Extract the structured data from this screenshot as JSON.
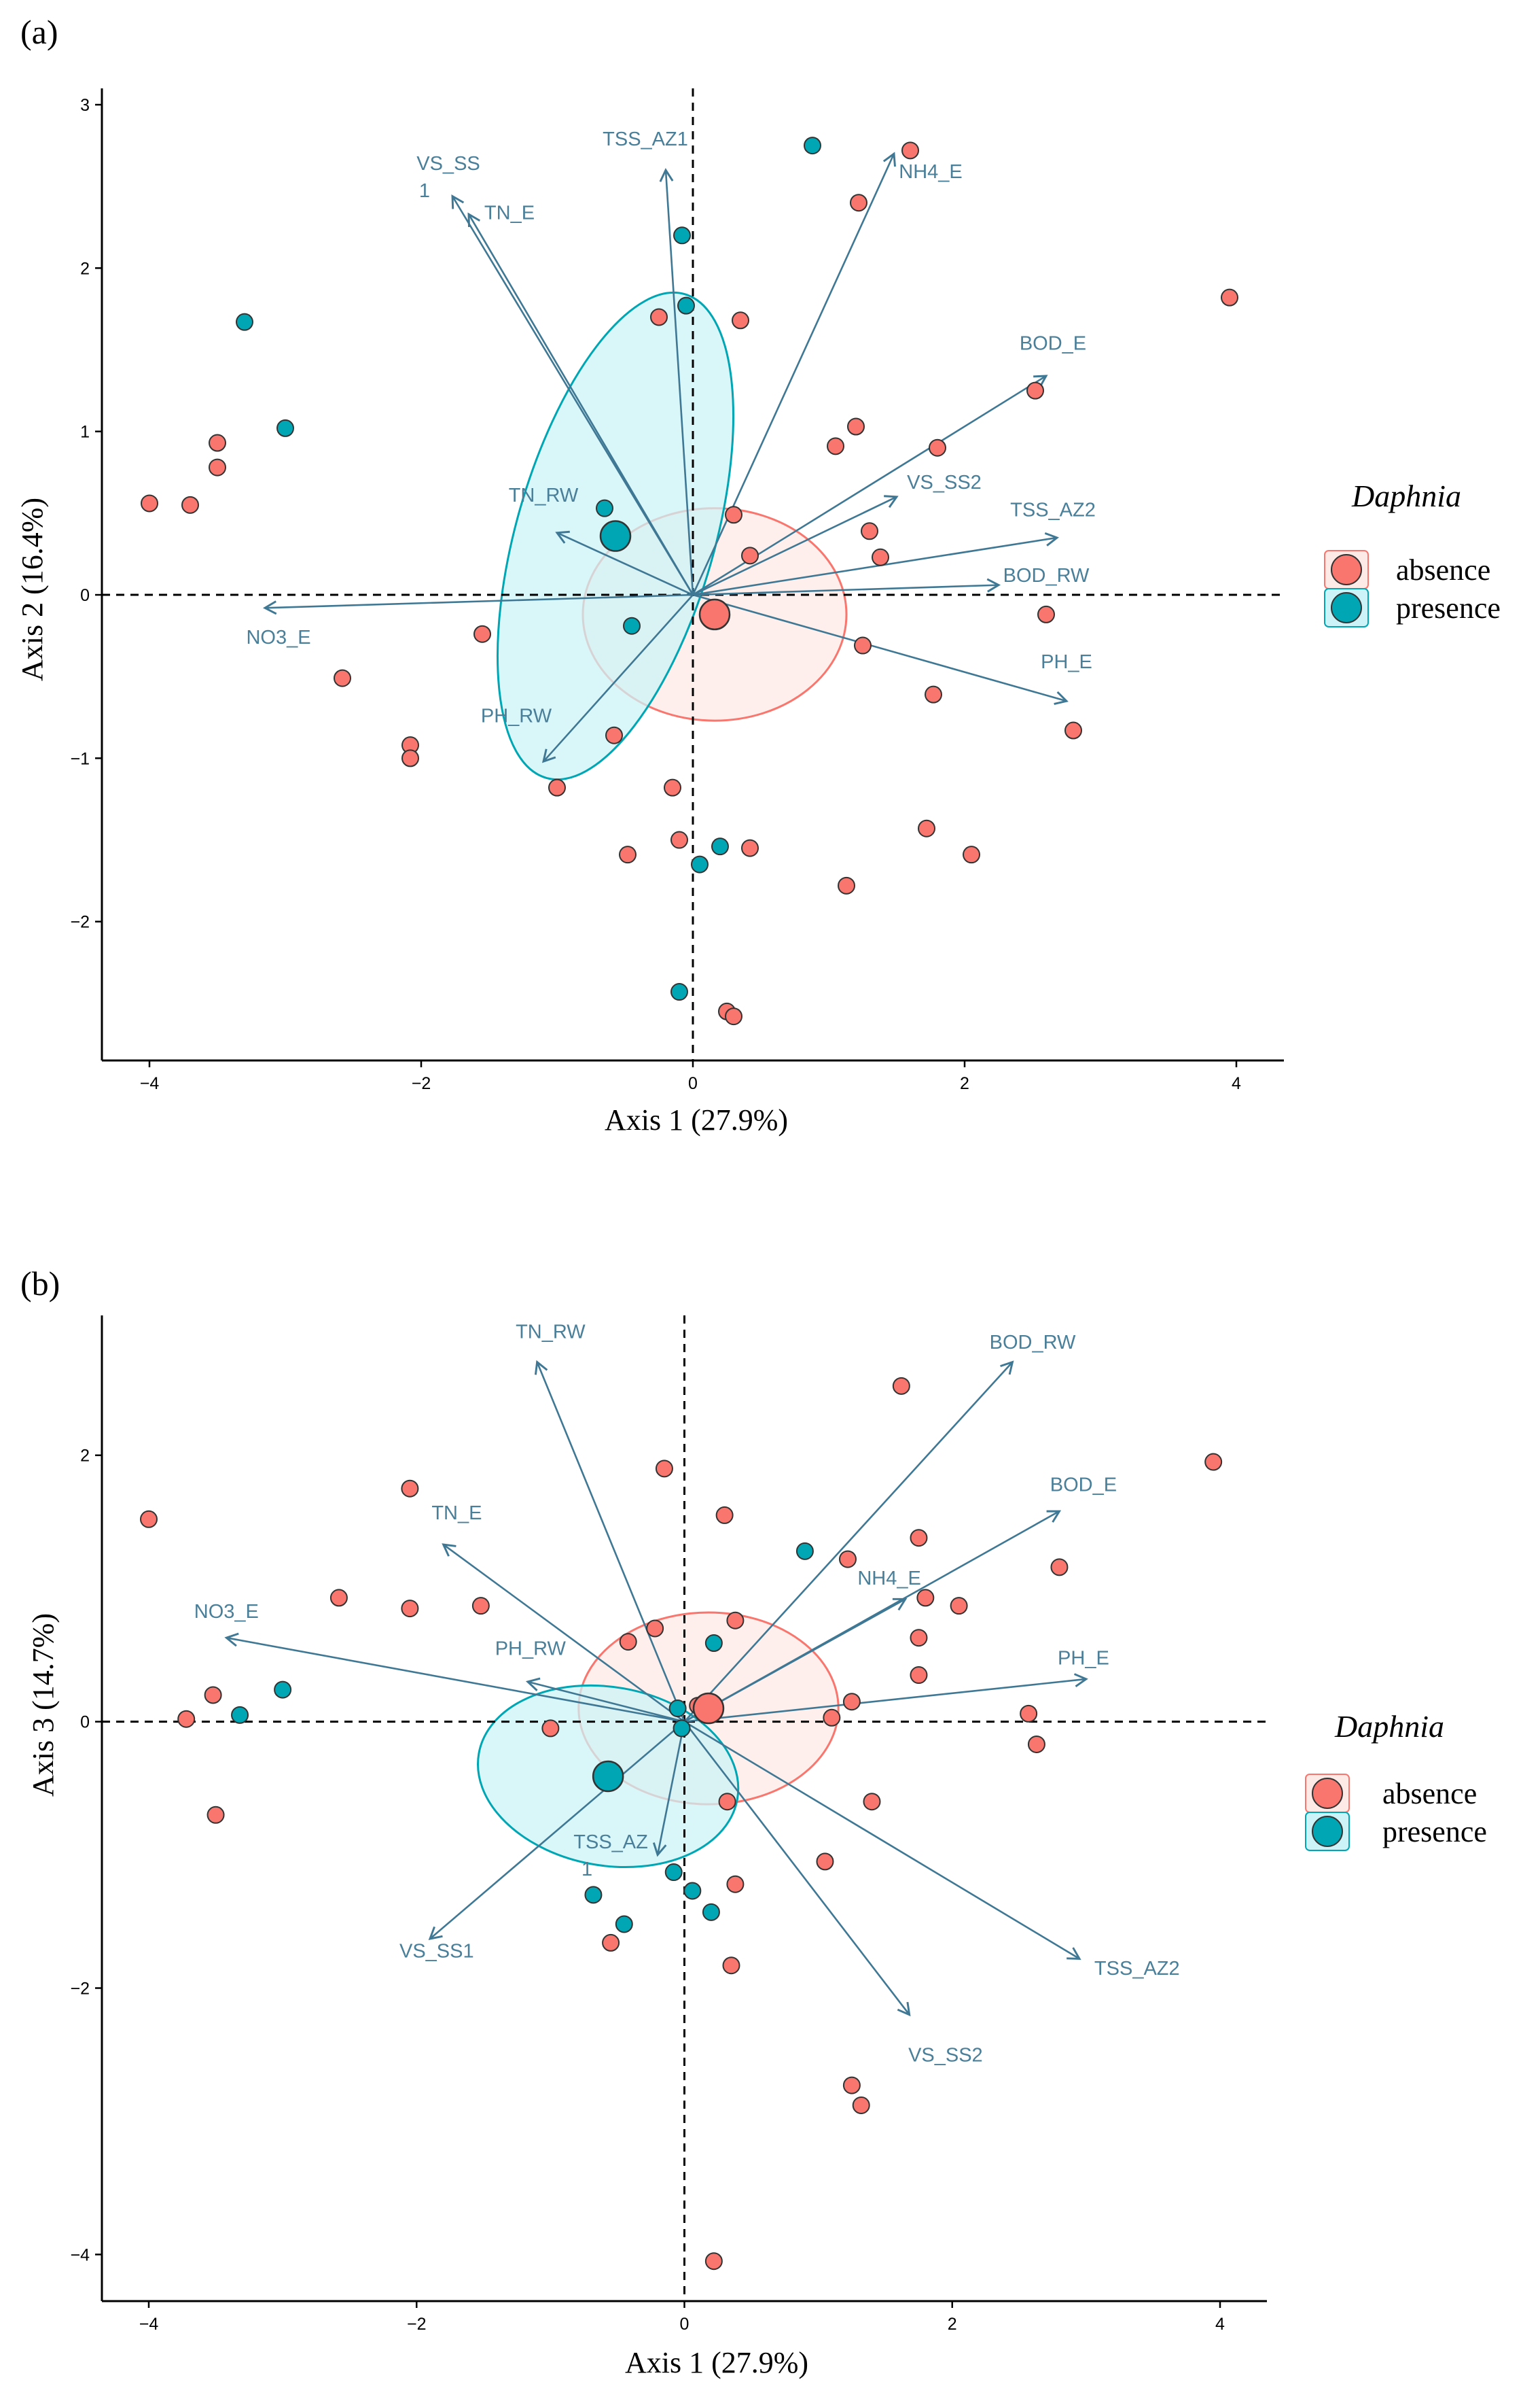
{
  "colors": {
    "absence": "#f8766d",
    "presence": "#00a6b3",
    "absence_fill_ellipse": "#fde9e6",
    "presence_fill_ellipse": "#ccf3f7",
    "vector": "#3f7894",
    "vector_label": "#4a7f9a"
  },
  "chart_data": [
    {
      "type": "scatter",
      "panel_label": "(a)",
      "xlabel": "Axis 1 (27.9%)",
      "ylabel": "Axis 2 (16.4%)",
      "xlim": [
        -4.35,
        4.35
      ],
      "ylim": [
        -2.85,
        3.1
      ],
      "xticks": [
        -4,
        -2,
        0,
        2,
        4
      ],
      "yticks": [
        -2,
        -1,
        0,
        1,
        2,
        3
      ],
      "tick_labels_x": [
        "−4",
        "−2",
        "0",
        "2",
        "4"
      ],
      "tick_labels_y": [
        "−2",
        "−1",
        "0",
        "1",
        "2",
        "3"
      ],
      "legend": {
        "title": "Daphnia",
        "entries": [
          "absence",
          "presence"
        ]
      },
      "series": [
        {
          "name": "absence",
          "points": [
            [
              1.6,
              2.72
            ],
            [
              1.22,
              2.4
            ],
            [
              3.95,
              1.82
            ],
            [
              -0.25,
              1.7
            ],
            [
              0.35,
              1.68
            ],
            [
              2.52,
              1.25
            ],
            [
              1.2,
              1.03
            ],
            [
              1.05,
              0.91
            ],
            [
              1.8,
              0.9
            ],
            [
              -4.0,
              0.56
            ],
            [
              -3.7,
              0.55
            ],
            [
              -3.5,
              0.93
            ],
            [
              -3.5,
              0.78
            ],
            [
              0.3,
              0.49
            ],
            [
              1.3,
              0.39
            ],
            [
              1.38,
              0.23
            ],
            [
              0.42,
              0.24
            ],
            [
              2.6,
              -0.12
            ],
            [
              1.25,
              -0.31
            ],
            [
              -1.55,
              -0.24
            ],
            [
              -2.58,
              -0.51
            ],
            [
              1.77,
              -0.61
            ],
            [
              2.8,
              -0.83
            ],
            [
              -0.58,
              -0.86
            ],
            [
              -2.08,
              -0.92
            ],
            [
              -2.08,
              -1.0
            ],
            [
              -1.0,
              -1.18
            ],
            [
              -0.15,
              -1.18
            ],
            [
              -0.48,
              -1.59
            ],
            [
              -0.1,
              -1.5
            ],
            [
              0.42,
              -1.55
            ],
            [
              1.72,
              -1.43
            ],
            [
              2.05,
              -1.59
            ],
            [
              1.13,
              -1.78
            ],
            [
              0.25,
              -2.55
            ],
            [
              0.3,
              -2.58
            ]
          ]
        },
        {
          "name": "presence",
          "points": [
            [
              0.88,
              2.75
            ],
            [
              -0.08,
              2.2
            ],
            [
              -0.05,
              1.77
            ],
            [
              -3.3,
              1.67
            ],
            [
              -3.0,
              1.02
            ],
            [
              -0.65,
              0.53
            ],
            [
              -0.45,
              -0.19
            ],
            [
              0.2,
              -1.54
            ],
            [
              0.05,
              -1.65
            ],
            [
              -0.1,
              -2.43
            ]
          ]
        }
      ],
      "centroids": [
        {
          "name": "absence",
          "x": 0.16,
          "y": -0.12
        },
        {
          "name": "presence",
          "x": -0.57,
          "y": 0.36
        }
      ],
      "ellipses": [
        {
          "name": "absence",
          "cx": 0.16,
          "cy": -0.12,
          "rx": 0.97,
          "ry": 0.65,
          "angle": 0
        },
        {
          "name": "presence",
          "cx": -0.57,
          "cy": 0.36,
          "rx": 0.73,
          "ry": 1.54,
          "angle": 16
        }
      ],
      "vectors": [
        {
          "label": "VS_SS\n1",
          "x": -1.77,
          "y": 2.44,
          "lx": -1.8,
          "ly": 2.6
        },
        {
          "label": "TN_E",
          "x": -1.65,
          "y": 2.33,
          "lx": -1.35,
          "ly": 2.3
        },
        {
          "label": "TSS_AZ1",
          "x": -0.2,
          "y": 2.6,
          "lx": -0.35,
          "ly": 2.75
        },
        {
          "label": "NH4_E",
          "x": 1.48,
          "y": 2.7,
          "lx": 1.75,
          "ly": 2.55
        },
        {
          "label": "BOD_E",
          "x": 2.6,
          "y": 1.34,
          "lx": 2.65,
          "ly": 1.5
        },
        {
          "label": "VS_SS2",
          "x": 1.5,
          "y": 0.6,
          "lx": 1.85,
          "ly": 0.65
        },
        {
          "label": "TSS_AZ2",
          "x": 2.68,
          "y": 0.35,
          "lx": 2.65,
          "ly": 0.48
        },
        {
          "label": "BOD_RW",
          "x": 2.25,
          "y": 0.06,
          "lx": 2.6,
          "ly": 0.08
        },
        {
          "label": "PH_E",
          "x": 2.75,
          "y": -0.65,
          "lx": 2.75,
          "ly": -0.45
        },
        {
          "label": "TN_RW",
          "x": -1.0,
          "y": 0.38,
          "lx": -1.1,
          "ly": 0.57
        },
        {
          "label": "NO3_E",
          "x": -3.15,
          "y": -0.08,
          "lx": -3.05,
          "ly": -0.3
        },
        {
          "label": "PH_RW",
          "x": -1.1,
          "y": -1.02,
          "lx": -1.3,
          "ly": -0.78
        }
      ]
    },
    {
      "type": "scatter",
      "panel_label": "(b)",
      "xlabel": "Axis 1 (27.9%)",
      "ylabel": "Axis 3 (14.7%)",
      "xlim": [
        -4.35,
        4.35
      ],
      "ylim": [
        -4.35,
        3.05
      ],
      "xticks": [
        -4,
        -2,
        0,
        2,
        4
      ],
      "yticks": [
        -4,
        -2,
        0,
        2
      ],
      "tick_labels_x": [
        "−4",
        "−2",
        "0",
        "2",
        "4"
      ],
      "tick_labels_y": [
        "−4",
        "−2",
        "0",
        "2"
      ],
      "legend": {
        "title": "Daphnia",
        "entries": [
          "absence",
          "presence"
        ]
      },
      "series": [
        {
          "name": "absence",
          "points": [
            [
              -4.0,
              1.52
            ],
            [
              -3.72,
              0.02
            ],
            [
              -3.52,
              0.2
            ],
            [
              -3.5,
              -0.7
            ],
            [
              -2.58,
              0.93
            ],
            [
              -2.05,
              1.75
            ],
            [
              -2.05,
              0.85
            ],
            [
              -1.52,
              0.87
            ],
            [
              -1.0,
              -0.05
            ],
            [
              -0.42,
              0.6
            ],
            [
              -0.22,
              0.7
            ],
            [
              -0.15,
              1.9
            ],
            [
              0.3,
              1.55
            ],
            [
              0.1,
              0.12
            ],
            [
              0.38,
              0.76
            ],
            [
              0.32,
              -0.6
            ],
            [
              0.38,
              -1.22
            ],
            [
              0.35,
              -1.83
            ],
            [
              1.1,
              0.03
            ],
            [
              1.22,
              1.22
            ],
            [
              1.25,
              0.15
            ],
            [
              1.05,
              -1.05
            ],
            [
              1.62,
              2.52
            ],
            [
              1.75,
              1.38
            ],
            [
              1.75,
              0.63
            ],
            [
              1.75,
              0.35
            ],
            [
              1.8,
              0.93
            ],
            [
              2.05,
              0.87
            ],
            [
              2.8,
              1.16
            ],
            [
              2.57,
              0.06
            ],
            [
              2.63,
              -0.17
            ],
            [
              3.95,
              1.95
            ],
            [
              1.4,
              -0.6
            ],
            [
              1.25,
              -2.73
            ],
            [
              1.32,
              -2.88
            ],
            [
              0.22,
              -4.05
            ],
            [
              -0.55,
              -1.66
            ]
          ]
        },
        {
          "name": "presence",
          "points": [
            [
              -3.32,
              0.05
            ],
            [
              -3.0,
              0.24
            ],
            [
              -0.68,
              -1.3
            ],
            [
              -0.45,
              -1.52
            ],
            [
              -0.08,
              -1.13
            ],
            [
              0.06,
              -1.27
            ],
            [
              0.22,
              0.59
            ],
            [
              0.2,
              -1.43
            ],
            [
              0.9,
              1.28
            ],
            [
              -0.05,
              0.1
            ],
            [
              -0.02,
              -0.05
            ]
          ]
        }
      ],
      "centroids": [
        {
          "name": "absence",
          "x": 0.18,
          "y": 0.1
        },
        {
          "name": "presence",
          "x": -0.57,
          "y": -0.41
        }
      ],
      "ellipses": [
        {
          "name": "absence",
          "cx": 0.18,
          "cy": 0.1,
          "rx": 0.97,
          "ry": 0.72,
          "angle": 0
        },
        {
          "name": "presence",
          "cx": -0.57,
          "cy": -0.41,
          "rx": 0.98,
          "ry": 0.67,
          "angle": 10
        }
      ],
      "vectors": [
        {
          "label": "TN_RW",
          "x": -1.1,
          "y": 2.7,
          "lx": -1.0,
          "ly": 2.88
        },
        {
          "label": "BOD_RW",
          "x": 2.45,
          "y": 2.7,
          "lx": 2.6,
          "ly": 2.8
        },
        {
          "label": "BOD_E",
          "x": 2.8,
          "y": 1.58,
          "lx": 2.98,
          "ly": 1.73
        },
        {
          "label": "NH4_E",
          "x": 1.65,
          "y": 0.92,
          "lx": 1.53,
          "ly": 1.03
        },
        {
          "label": "TN_E",
          "x": -1.8,
          "y": 1.33,
          "lx": -1.7,
          "ly": 1.52
        },
        {
          "label": "NO3_E",
          "x": -3.42,
          "y": 0.63,
          "lx": -3.42,
          "ly": 0.78
        },
        {
          "label": "PH_RW",
          "x": -1.17,
          "y": 0.3,
          "lx": -1.15,
          "ly": 0.5
        },
        {
          "label": "PH_E",
          "x": 3.0,
          "y": 0.32,
          "lx": 2.98,
          "ly": 0.43
        },
        {
          "label": "TSS_AZ\n1",
          "x": -0.2,
          "y": -1.0,
          "lx": -0.55,
          "ly": -0.95
        },
        {
          "label": "VS_SS1",
          "x": -1.9,
          "y": -1.63,
          "lx": -1.85,
          "ly": -1.77
        },
        {
          "label": "TSS_AZ2",
          "x": 2.95,
          "y": -1.78,
          "lx": 3.38,
          "ly": -1.9
        },
        {
          "label": "VS_SS2",
          "x": 1.68,
          "y": -2.2,
          "lx": 1.95,
          "ly": -2.55
        }
      ]
    }
  ]
}
